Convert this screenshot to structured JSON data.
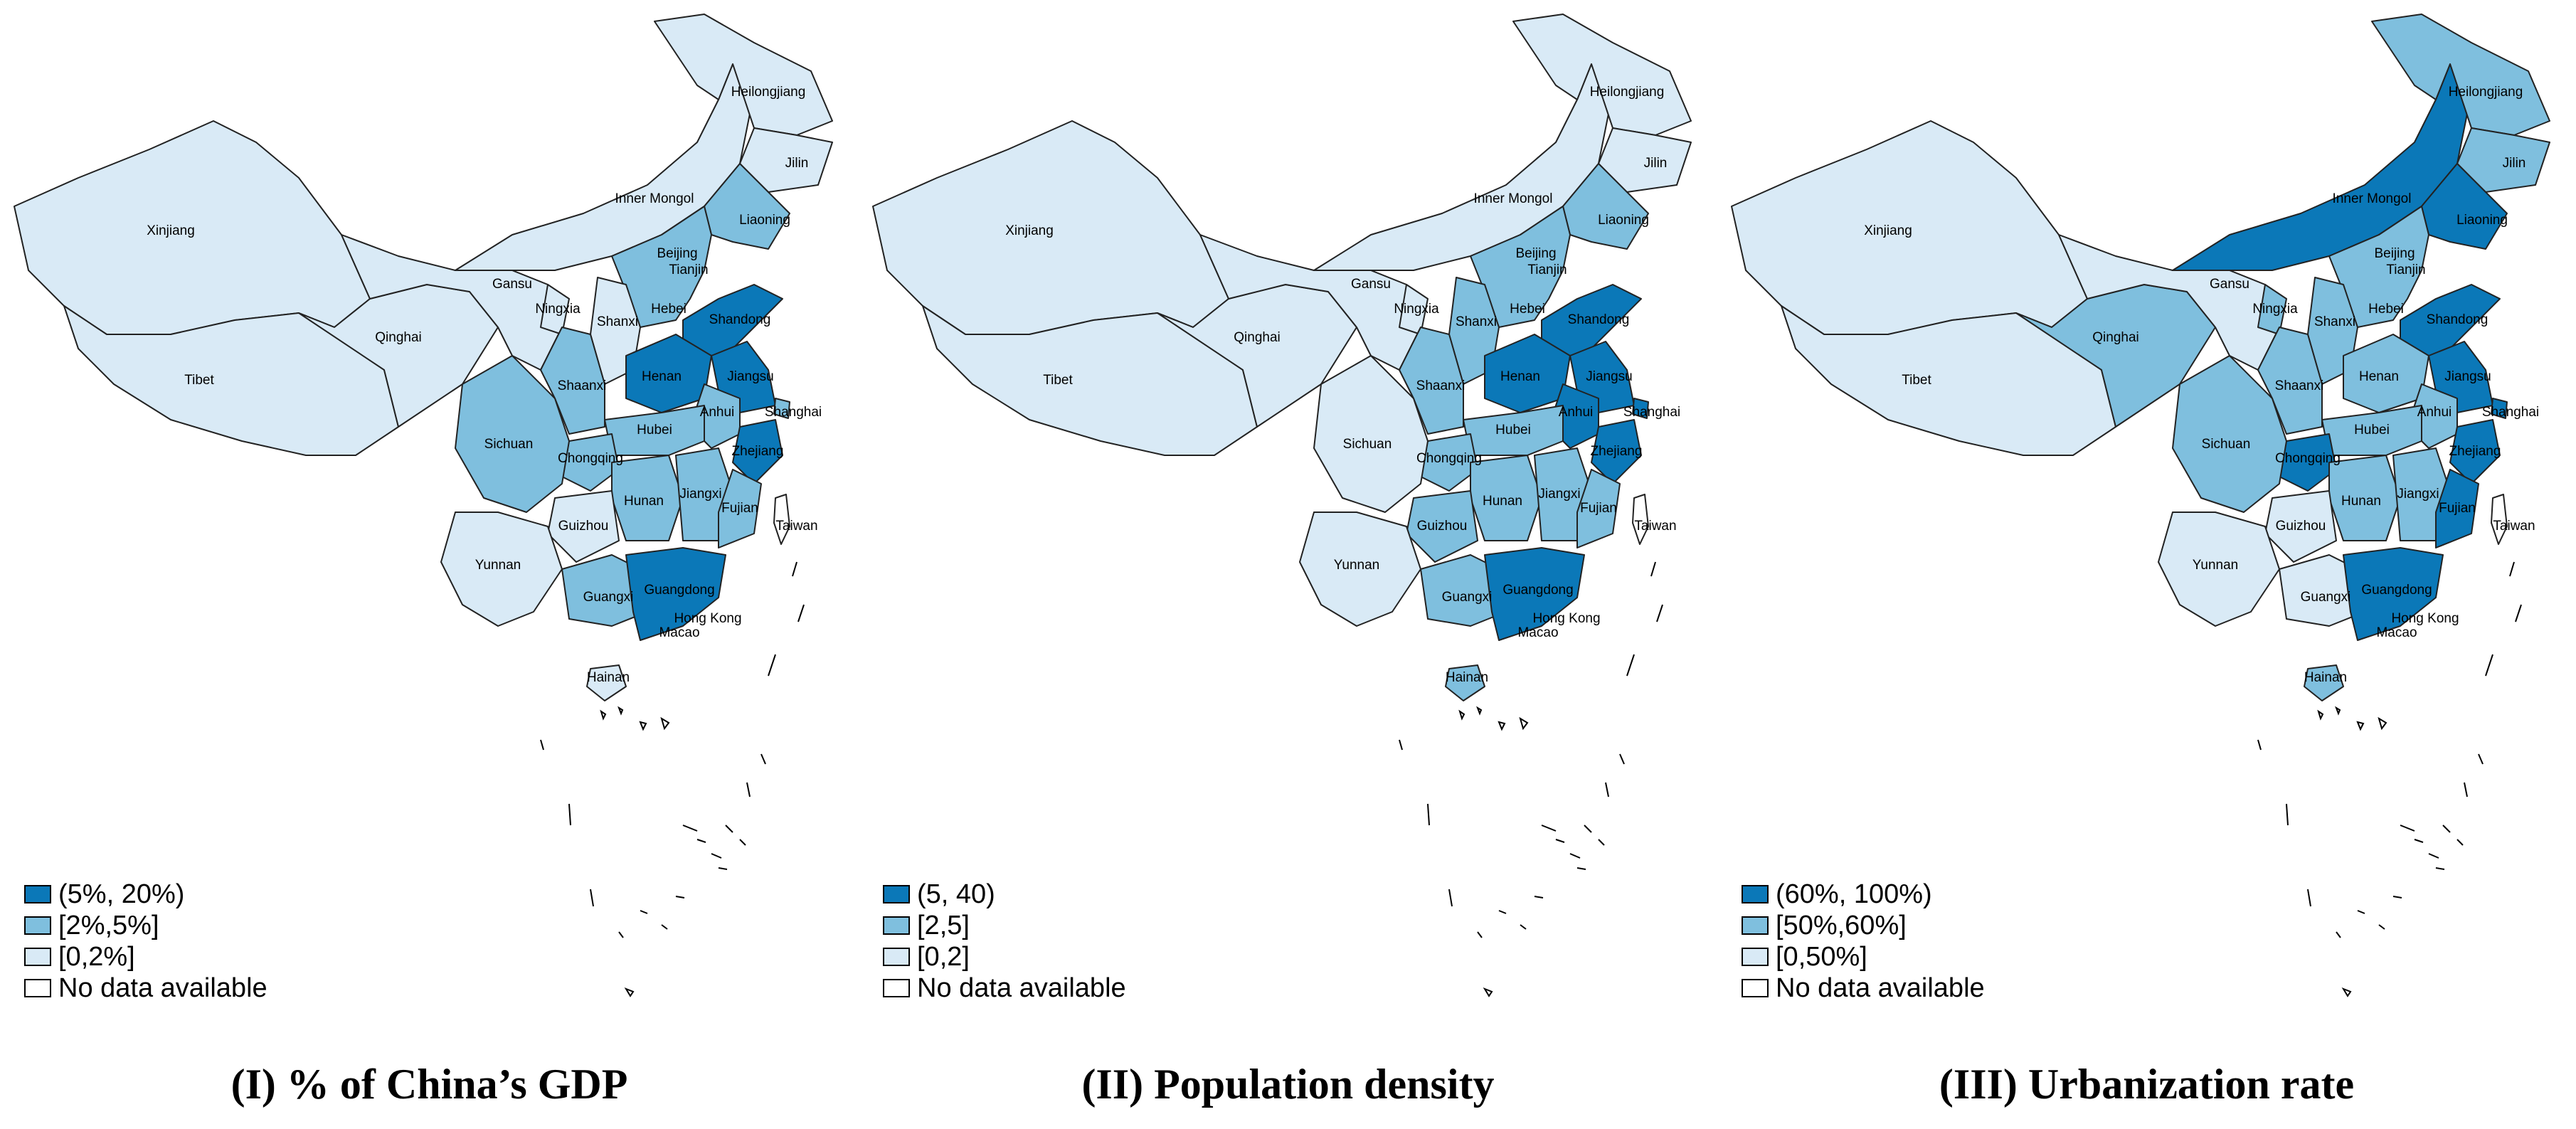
{
  "colors": {
    "high": "#0b78b8",
    "mid": "#7fbfde",
    "low": "#d9eaf6",
    "none": "#ffffff",
    "border": "#222222"
  },
  "panels": [
    {
      "id": "gdp",
      "caption": "(I) % of China’s GDP",
      "legend": [
        "(5%, 20%)",
        "[2%,5%]",
        "[0,2%]",
        "No data available"
      ],
      "values": {
        "Heilongjiang": "low",
        "Jilin": "low",
        "Liaoning": "mid",
        "Inner Mongol": "low",
        "Beijing": "mid",
        "Tianjin": "low",
        "Hebei": "mid",
        "Shanxi": "low",
        "Shandong": "high",
        "Henan": "high",
        "Jiangsu": "high",
        "Anhui": "mid",
        "Shanghai": "mid",
        "Zhejiang": "high",
        "Shaanxi": "mid",
        "Ningxia": "low",
        "Gansu": "low",
        "Qinghai": "low",
        "Xinjiang": "low",
        "Tibet": "low",
        "Sichuan": "mid",
        "Chongqing": "mid",
        "Hubei": "mid",
        "Hunan": "mid",
        "Jiangxi": "mid",
        "Fujian": "mid",
        "Guizhou": "low",
        "Yunnan": "low",
        "Guangxi": "mid",
        "Guangdong": "high",
        "Hainan": "low",
        "Taiwan": "none",
        "Hong Kong": "none",
        "Macao": "none"
      }
    },
    {
      "id": "density",
      "caption": "(II) Population density",
      "legend": [
        "(5, 40)",
        "[2,5]",
        "[0,2]",
        "No data available"
      ],
      "values": {
        "Heilongjiang": "low",
        "Jilin": "low",
        "Liaoning": "mid",
        "Inner Mongol": "low",
        "Beijing": "high",
        "Tianjin": "high",
        "Hebei": "mid",
        "Shanxi": "mid",
        "Shandong": "high",
        "Henan": "high",
        "Jiangsu": "high",
        "Anhui": "high",
        "Shanghai": "high",
        "Zhejiang": "high",
        "Shaanxi": "mid",
        "Ningxia": "low",
        "Gansu": "low",
        "Qinghai": "low",
        "Xinjiang": "low",
        "Tibet": "low",
        "Sichuan": "low",
        "Chongqing": "mid",
        "Hubei": "mid",
        "Hunan": "mid",
        "Jiangxi": "mid",
        "Fujian": "mid",
        "Guizhou": "mid",
        "Yunnan": "low",
        "Guangxi": "mid",
        "Guangdong": "high",
        "Hainan": "mid",
        "Taiwan": "none",
        "Hong Kong": "none",
        "Macao": "none"
      }
    },
    {
      "id": "urban",
      "caption": "(III) Urbanization rate",
      "legend": [
        "(60%, 100%)",
        "[50%,60%]",
        "[0,50%]",
        "No data available"
      ],
      "values": {
        "Heilongjiang": "mid",
        "Jilin": "mid",
        "Liaoning": "high",
        "Inner Mongol": "high",
        "Beijing": "high",
        "Tianjin": "high",
        "Hebei": "mid",
        "Shanxi": "mid",
        "Shandong": "high",
        "Henan": "mid",
        "Jiangsu": "high",
        "Anhui": "mid",
        "Shanghai": "high",
        "Zhejiang": "high",
        "Shaanxi": "mid",
        "Ningxia": "mid",
        "Gansu": "low",
        "Qinghai": "mid",
        "Xinjiang": "low",
        "Tibet": "low",
        "Sichuan": "mid",
        "Chongqing": "high",
        "Hubei": "mid",
        "Hunan": "mid",
        "Jiangxi": "mid",
        "Fujian": "high",
        "Guizhou": "low",
        "Yunnan": "low",
        "Guangxi": "low",
        "Guangdong": "high",
        "Hainan": "mid",
        "Taiwan": "none",
        "Hong Kong": "none",
        "Macao": "none"
      }
    }
  ]
}
